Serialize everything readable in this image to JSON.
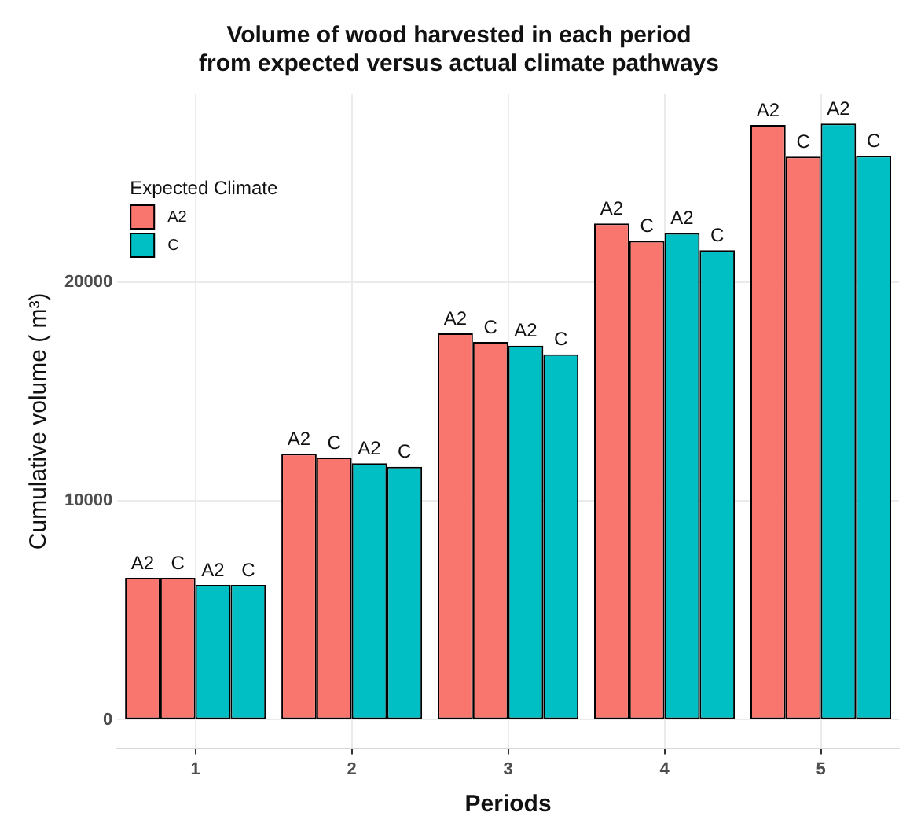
{
  "chart_data": {
    "type": "bar",
    "title": "Volume of wood harvested in each period\nfrom expected versus actual climate pathways",
    "xlabel": "Periods",
    "ylabel": "Cumulative volume ( m³)",
    "legend_title": "Expected Climate",
    "categories": [
      "1",
      "2",
      "3",
      "4",
      "5"
    ],
    "series": [
      {
        "name": "A2",
        "color": "#f8766d",
        "values": [
          6490,
          12160,
          17670,
          22690,
          27200
        ],
        "value_labels": [
          "A2",
          "A2",
          "A2",
          "A2",
          "A2"
        ]
      },
      {
        "color": "#f8766d",
        "values": [
          6490,
          11990,
          17270,
          21890,
          25750
        ],
        "value_labels": [
          "C",
          "C",
          "C",
          "C",
          "C"
        ]
      },
      {
        "name": "C",
        "color": "#00bfc4",
        "values": [
          6160,
          11730,
          17100,
          22250,
          27260
        ],
        "value_labels": [
          "A2",
          "A2",
          "A2",
          "A2",
          "A2"
        ]
      },
      {
        "color": "#00bfc4",
        "values": [
          6160,
          11570,
          16710,
          21470,
          25790
        ],
        "value_labels": [
          "C",
          "C",
          "C",
          "C",
          "C"
        ]
      }
    ],
    "ylim": [
      -1300,
      28600
    ],
    "yticks": [
      0,
      10000,
      20000
    ],
    "grid": true,
    "legend": "top left"
  }
}
